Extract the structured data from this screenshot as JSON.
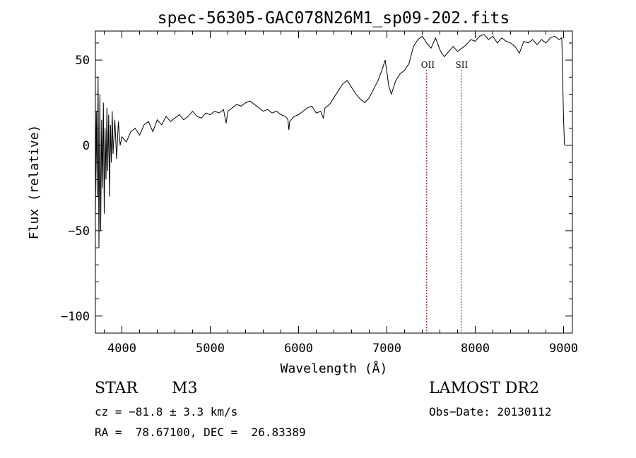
{
  "chart_data": {
    "type": "line",
    "title": "spec-56305-GAC078N26M1_sp09-202.fits",
    "xlabel": "Wavelength (Å)",
    "ylabel": "Flux (relative)",
    "xlim": [
      3700,
      9100
    ],
    "ylim": [
      -110,
      67
    ],
    "x_ticks": [
      4000,
      5000,
      6000,
      7000,
      8000,
      9000
    ],
    "y_ticks": [
      -100,
      -50,
      0,
      50
    ],
    "x_tick_labels": [
      "4000",
      "5000",
      "6000",
      "7000",
      "8000",
      "9000"
    ],
    "y_tick_labels": [
      "−100",
      "−50",
      "0",
      "50"
    ],
    "grid": false,
    "line_color": "#000000",
    "marker_color": "#8b0000",
    "series": [
      {
        "x": [
          3700,
          3710,
          3720,
          3730,
          3740,
          3750,
          3760,
          3770,
          3780,
          3790,
          3800,
          3810,
          3820,
          3830,
          3840,
          3850,
          3860,
          3870,
          3880,
          3890,
          3900,
          3920,
          3940,
          3960,
          3980,
          4000,
          4050,
          4100,
          4150,
          4200,
          4250,
          4300,
          4350,
          4400,
          4450,
          4500,
          4550,
          4600,
          4650,
          4700,
          4750,
          4800,
          4850,
          4900,
          4950,
          5000,
          5050,
          5100,
          5150,
          5180,
          5200,
          5250,
          5300,
          5350,
          5400,
          5450,
          5500,
          5550,
          5600,
          5650,
          5700,
          5750,
          5800,
          5850,
          5880,
          5890,
          5900,
          5950,
          6000,
          6050,
          6100,
          6150,
          6200,
          6250,
          6280,
          6300,
          6350,
          6400,
          6450,
          6500,
          6550,
          6600,
          6650,
          6700,
          6750,
          6800,
          6850,
          6900,
          6950,
          6980,
          7000,
          7020,
          7050,
          7100,
          7150,
          7200,
          7250,
          7300,
          7350,
          7400,
          7450,
          7500,
          7550,
          7600,
          7620,
          7650,
          7700,
          7750,
          7800,
          7850,
          7900,
          7950,
          8000,
          8050,
          8100,
          8150,
          8200,
          8250,
          8300,
          8350,
          8400,
          8450,
          8500,
          8550,
          8600,
          8650,
          8700,
          8750,
          8800,
          8850,
          8900,
          8950,
          8980,
          9000,
          9010
        ],
        "y": [
          -40,
          20,
          -30,
          40,
          -60,
          30,
          -50,
          15,
          -25,
          25,
          -40,
          10,
          -20,
          22,
          -15,
          18,
          -30,
          12,
          -10,
          20,
          -5,
          15,
          -8,
          14,
          0,
          5,
          2,
          8,
          10,
          6,
          12,
          14,
          8,
          15,
          12,
          17,
          14,
          16,
          18,
          15,
          17,
          20,
          17,
          16,
          19,
          18,
          20,
          19,
          21,
          13,
          20,
          22,
          24,
          23,
          25,
          26,
          24,
          22,
          20,
          21,
          19,
          20,
          18,
          17,
          15,
          9,
          14,
          17,
          18,
          20,
          22,
          23,
          19,
          20,
          16,
          22,
          24,
          28,
          32,
          36,
          38,
          34,
          30,
          27,
          25,
          28,
          33,
          38,
          45,
          50,
          43,
          35,
          30,
          38,
          42,
          44,
          48,
          58,
          62,
          64,
          60,
          57,
          63,
          56,
          54,
          52,
          55,
          58,
          55,
          57,
          59,
          62,
          61,
          64,
          65,
          62,
          64,
          60,
          63,
          61,
          60,
          58,
          54,
          61,
          60,
          62,
          59,
          62,
          60,
          63,
          64,
          62,
          63,
          15,
          0
        ]
      }
    ],
    "emission_lines": [
      {
        "label": "OII",
        "x": 7450
      },
      {
        "label": "SII",
        "x": 7840
      }
    ],
    "info": {
      "class_label": "STAR",
      "subclass_label": "M3",
      "cz": "cz = −81.8 ± 3.3 km/s",
      "coords": "RA =  78.67100, DEC =  26.83389",
      "survey": "LAMOST DR2",
      "obs_date": "Obs−Date: 20130112"
    }
  }
}
